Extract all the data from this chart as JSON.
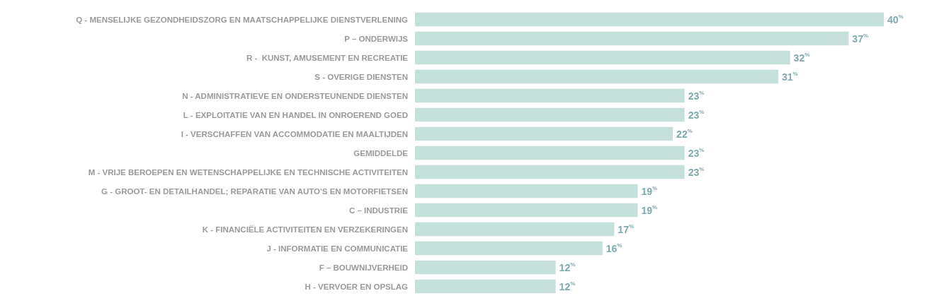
{
  "chart_data": {
    "type": "bar",
    "orientation": "horizontal",
    "color": "#c5dfdb",
    "categories": [
      "Q - MENSELIJKE GEZONDHEIDSZORG EN MAATSCHAPPELIJKE DIENSTVERLENING",
      "P – ONDERWIJS",
      "R -  KUNST, AMUSEMENT EN RECREATIE",
      "S - OVERIGE DIENSTEN",
      "N - ADMINISTRATIEVE EN ONDERSTEUNENDE DIENSTEN",
      "L - EXPLOITATIE VAN EN HANDEL IN ONROEREND GOED",
      "I - VERSCHAFFEN VAN ACCOMMODATIE EN MAALTIJDEN",
      "GEMIDDELDE",
      "M - VRIJE BEROEPEN EN WETENSCHAPPELIJKE EN TECHNISCHE ACTIVITEITEN",
      "G - GROOT- EN DETAILHANDEL; REPARATIE VAN AUTO'S EN MOTORFIETSEN",
      "C – INDUSTRIE",
      "K - FINANCIËLE ACTIVITEITEN EN VERZEKERINGEN",
      "J - INFORMATIE EN COMMUNICATIE",
      "F – BOUWNIJVERHEID",
      "H - VERVOER EN OPSLAG"
    ],
    "values": [
      40,
      37,
      32,
      31,
      23,
      23,
      22,
      23,
      23,
      19,
      19,
      17,
      16,
      12,
      12
    ],
    "value_labels": [
      "40$^{%}$",
      "37$^{%}$",
      "32$^{%}$",
      "31$^{%}$",
      "23$^{%}$",
      "23$^{%}$",
      "22$^{%}$",
      "23$^{%}$",
      "23$^{%}$",
      "19$^{%}$",
      "19$^{%}$",
      "17$^{%}$",
      "16$^{%}$",
      "12$^{%}$",
      "12$^{%}$"
    ]
  }
}
